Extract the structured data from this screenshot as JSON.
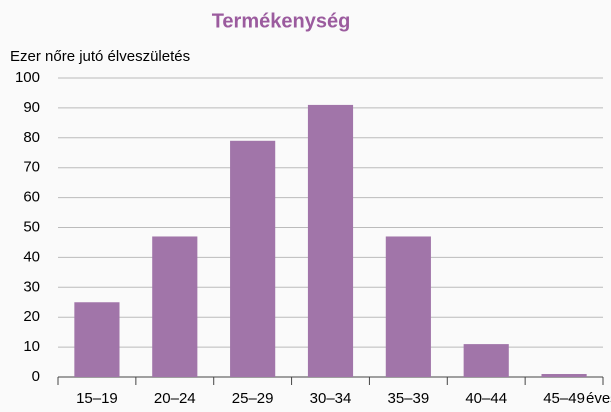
{
  "chart_data": {
    "type": "bar",
    "title": "Termékenység",
    "y_label": "Ezer nőre jutó élveszületés",
    "x_label": "éves",
    "categories": [
      "15–19",
      "20–24",
      "25–29",
      "30–34",
      "35–39",
      "40–44",
      "45–49"
    ],
    "values": [
      25,
      47,
      79,
      91,
      47,
      11,
      1
    ],
    "color": "#a175a9",
    "ylim": [
      0,
      100
    ],
    "yticks": [
      0,
      10,
      20,
      30,
      40,
      50,
      60,
      70,
      80,
      90,
      100
    ],
    "grid": true
  }
}
